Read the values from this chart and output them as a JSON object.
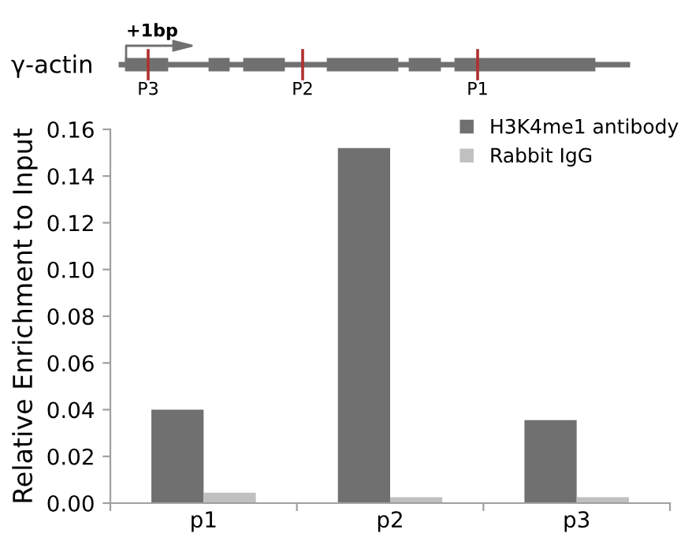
{
  "chart_data": {
    "type": "bar",
    "ylabel": "Relative Enrichment to Input",
    "categories": [
      "p1",
      "p2",
      "p3"
    ],
    "series": [
      {
        "name": "H3K4me1 antibody",
        "color": "#707070",
        "values": [
          0.04,
          0.152,
          0.0355
        ]
      },
      {
        "name": "Rabbit IgG",
        "color": "#c0c0c0",
        "values": [
          0.0045,
          0.0025,
          0.0025
        ]
      }
    ],
    "ylim": [
      0,
      0.16
    ],
    "yticks": [
      {
        "value": 0,
        "label": "0.00"
      },
      {
        "value": 0.02,
        "label": "0.02"
      },
      {
        "value": 0.04,
        "label": "0.04"
      },
      {
        "value": 0.06,
        "label": "0.06"
      },
      {
        "value": 0.08,
        "label": "0.08"
      },
      {
        "value": 0.1,
        "label": "0.10"
      },
      {
        "value": 0.12,
        "label": "0.12"
      },
      {
        "value": 0.14,
        "label": "0.14"
      },
      {
        "value": 0.16,
        "label": "0.16"
      }
    ],
    "grid": false,
    "legend": "top right",
    "annotations": [
      "γ-actin",
      "+1bp",
      "P3",
      "P2",
      "P1"
    ]
  }
}
